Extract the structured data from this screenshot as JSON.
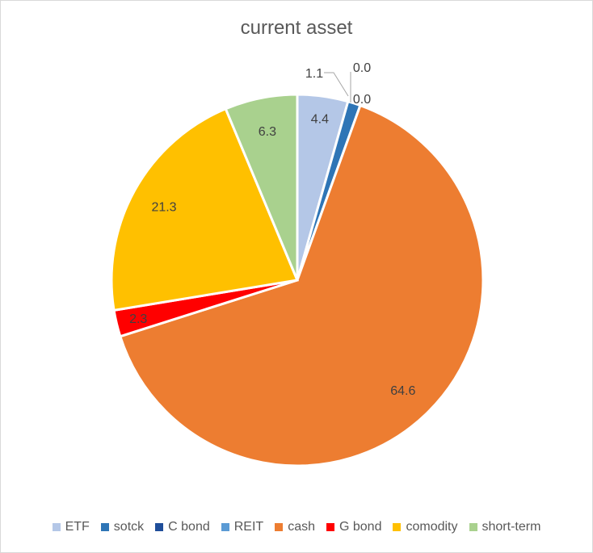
{
  "chart_data": {
    "type": "pie",
    "title": "current asset",
    "categories": [
      "ETF",
      "sotck",
      "C bond",
      "REIT",
      "cash",
      "G bond",
      "comodity",
      "short-term"
    ],
    "values": [
      4.4,
      1.1,
      0.0,
      0.0,
      64.6,
      2.3,
      21.3,
      6.3
    ],
    "data_labels": [
      "4.4",
      "1.1",
      "0.0",
      "0.0",
      "64.6",
      "2.3",
      "21.3",
      "6.3"
    ],
    "colors": [
      "#B4C7E7",
      "#2E75B6",
      "#1F4E9A",
      "#5B9BD5",
      "#ED7D31",
      "#FF0000",
      "#FFC000",
      "#A9D18E"
    ],
    "legend_position": "bottom"
  }
}
